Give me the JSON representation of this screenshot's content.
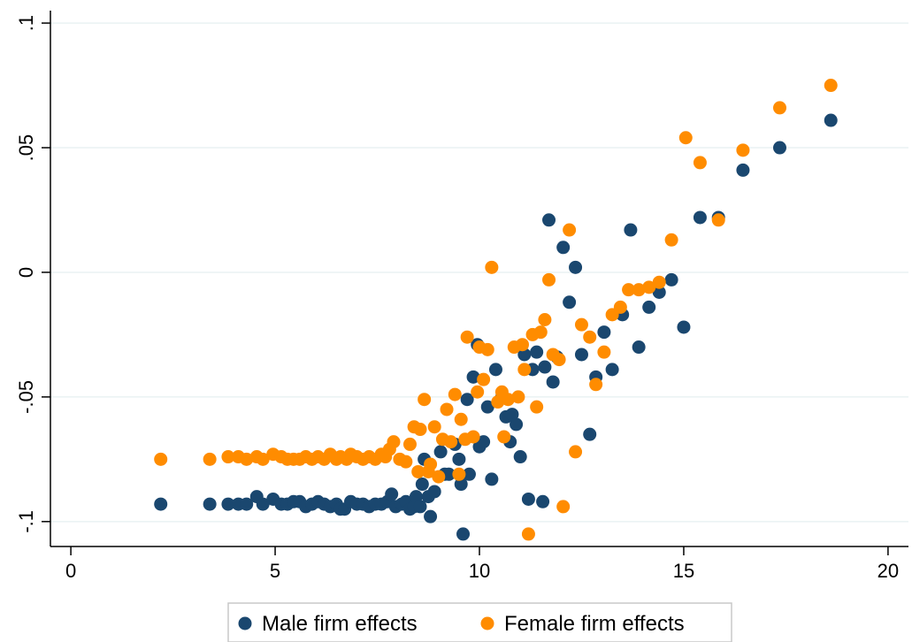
{
  "chart_data": {
    "type": "scatter",
    "title": "",
    "xlabel": "",
    "ylabel": "",
    "xlim": [
      -0.5,
      20.5
    ],
    "ylim": [
      -0.11,
      0.105
    ],
    "x_ticks": [
      0,
      5,
      10,
      15,
      20
    ],
    "x_tick_labels": [
      "0",
      "5",
      "10",
      "15",
      "20"
    ],
    "y_ticks": [
      -0.1,
      -0.05,
      0,
      0.05,
      0.1
    ],
    "y_tick_labels": [
      "-.1",
      "-.05",
      "0",
      ".05",
      ".1"
    ],
    "grid": "horizontal",
    "legend_position": "bottom",
    "series": [
      {
        "name": "Male firm effects",
        "color": "#1a476f",
        "points": [
          [
            2.2,
            -0.093
          ],
          [
            3.4,
            -0.093
          ],
          [
            3.85,
            -0.093
          ],
          [
            4.1,
            -0.093
          ],
          [
            4.3,
            -0.093
          ],
          [
            4.55,
            -0.09
          ],
          [
            4.7,
            -0.093
          ],
          [
            4.95,
            -0.091
          ],
          [
            5.15,
            -0.093
          ],
          [
            5.3,
            -0.093
          ],
          [
            5.45,
            -0.092
          ],
          [
            5.6,
            -0.092
          ],
          [
            5.75,
            -0.094
          ],
          [
            5.9,
            -0.093
          ],
          [
            6.05,
            -0.092
          ],
          [
            6.2,
            -0.093
          ],
          [
            6.35,
            -0.094
          ],
          [
            6.5,
            -0.093
          ],
          [
            6.6,
            -0.095
          ],
          [
            6.7,
            -0.095
          ],
          [
            6.85,
            -0.092
          ],
          [
            7.0,
            -0.093
          ],
          [
            7.15,
            -0.093
          ],
          [
            7.3,
            -0.094
          ],
          [
            7.45,
            -0.093
          ],
          [
            7.6,
            -0.093
          ],
          [
            7.75,
            -0.092
          ],
          [
            7.85,
            -0.089
          ],
          [
            7.95,
            -0.094
          ],
          [
            8.1,
            -0.093
          ],
          [
            8.2,
            -0.092
          ],
          [
            8.3,
            -0.095
          ],
          [
            8.4,
            -0.094
          ],
          [
            8.45,
            -0.09
          ],
          [
            8.55,
            -0.094
          ],
          [
            8.6,
            -0.085
          ],
          [
            8.65,
            -0.075
          ],
          [
            8.75,
            -0.09
          ],
          [
            8.8,
            -0.098
          ],
          [
            8.9,
            -0.088
          ],
          [
            9.05,
            -0.072
          ],
          [
            9.15,
            -0.081
          ],
          [
            9.25,
            -0.081
          ],
          [
            9.4,
            -0.069
          ],
          [
            9.5,
            -0.075
          ],
          [
            9.55,
            -0.085
          ],
          [
            9.6,
            -0.105
          ],
          [
            9.7,
            -0.051
          ],
          [
            9.75,
            -0.081
          ],
          [
            9.85,
            -0.042
          ],
          [
            9.95,
            -0.029
          ],
          [
            10.0,
            -0.07
          ],
          [
            10.1,
            -0.068
          ],
          [
            10.2,
            -0.054
          ],
          [
            10.3,
            -0.083
          ],
          [
            10.4,
            -0.039
          ],
          [
            10.55,
            -0.05
          ],
          [
            10.65,
            -0.058
          ],
          [
            10.75,
            -0.068
          ],
          [
            10.8,
            -0.057
          ],
          [
            10.9,
            -0.061
          ],
          [
            11.0,
            -0.074
          ],
          [
            11.1,
            -0.033
          ],
          [
            11.2,
            -0.091
          ],
          [
            11.3,
            -0.039
          ],
          [
            11.4,
            -0.032
          ],
          [
            11.55,
            -0.092
          ],
          [
            11.6,
            -0.038
          ],
          [
            11.7,
            0.021
          ],
          [
            11.8,
            -0.044
          ],
          [
            11.9,
            -0.034
          ],
          [
            12.05,
            0.01
          ],
          [
            12.2,
            -0.012
          ],
          [
            12.35,
            0.002
          ],
          [
            12.5,
            -0.033
          ],
          [
            12.7,
            -0.065
          ],
          [
            12.85,
            -0.042
          ],
          [
            13.05,
            -0.024
          ],
          [
            13.25,
            -0.039
          ],
          [
            13.5,
            -0.017
          ],
          [
            13.7,
            0.017
          ],
          [
            13.9,
            -0.03
          ],
          [
            14.15,
            -0.014
          ],
          [
            14.4,
            -0.008
          ],
          [
            14.7,
            -0.003
          ],
          [
            15.0,
            -0.022
          ],
          [
            15.4,
            0.022
          ],
          [
            15.85,
            0.022
          ],
          [
            16.45,
            0.041
          ],
          [
            17.35,
            0.05
          ],
          [
            18.6,
            0.061
          ]
        ]
      },
      {
        "name": "Female firm effects",
        "color": "#ff8c00",
        "points": [
          [
            2.2,
            -0.075
          ],
          [
            3.4,
            -0.075
          ],
          [
            3.85,
            -0.074
          ],
          [
            4.1,
            -0.074
          ],
          [
            4.3,
            -0.075
          ],
          [
            4.55,
            -0.074
          ],
          [
            4.7,
            -0.075
          ],
          [
            4.95,
            -0.073
          ],
          [
            5.15,
            -0.074
          ],
          [
            5.3,
            -0.075
          ],
          [
            5.45,
            -0.075
          ],
          [
            5.6,
            -0.075
          ],
          [
            5.75,
            -0.074
          ],
          [
            5.9,
            -0.075
          ],
          [
            6.05,
            -0.074
          ],
          [
            6.2,
            -0.075
          ],
          [
            6.35,
            -0.073
          ],
          [
            6.5,
            -0.075
          ],
          [
            6.6,
            -0.074
          ],
          [
            6.75,
            -0.075
          ],
          [
            6.85,
            -0.073
          ],
          [
            7.0,
            -0.074
          ],
          [
            7.15,
            -0.075
          ],
          [
            7.3,
            -0.074
          ],
          [
            7.45,
            -0.075
          ],
          [
            7.6,
            -0.073
          ],
          [
            7.7,
            -0.074
          ],
          [
            7.8,
            -0.071
          ],
          [
            7.9,
            -0.068
          ],
          [
            8.05,
            -0.075
          ],
          [
            8.2,
            -0.076
          ],
          [
            8.3,
            -0.069
          ],
          [
            8.4,
            -0.062
          ],
          [
            8.5,
            -0.08
          ],
          [
            8.55,
            -0.063
          ],
          [
            8.65,
            -0.051
          ],
          [
            8.75,
            -0.08
          ],
          [
            8.8,
            -0.077
          ],
          [
            8.9,
            -0.062
          ],
          [
            9.0,
            -0.082
          ],
          [
            9.1,
            -0.067
          ],
          [
            9.2,
            -0.055
          ],
          [
            9.3,
            -0.068
          ],
          [
            9.4,
            -0.049
          ],
          [
            9.5,
            -0.081
          ],
          [
            9.55,
            -0.059
          ],
          [
            9.65,
            -0.067
          ],
          [
            9.7,
            -0.026
          ],
          [
            9.85,
            -0.066
          ],
          [
            9.95,
            -0.048
          ],
          [
            10.0,
            -0.03
          ],
          [
            10.1,
            -0.043
          ],
          [
            10.2,
            -0.031
          ],
          [
            10.3,
            0.002
          ],
          [
            10.45,
            -0.052
          ],
          [
            10.55,
            -0.048
          ],
          [
            10.6,
            -0.066
          ],
          [
            10.7,
            -0.051
          ],
          [
            10.85,
            -0.03
          ],
          [
            10.95,
            -0.05
          ],
          [
            11.05,
            -0.029
          ],
          [
            11.1,
            -0.039
          ],
          [
            11.2,
            -0.105
          ],
          [
            11.3,
            -0.025
          ],
          [
            11.4,
            -0.054
          ],
          [
            11.5,
            -0.024
          ],
          [
            11.6,
            -0.019
          ],
          [
            11.7,
            -0.003
          ],
          [
            11.8,
            -0.033
          ],
          [
            11.95,
            -0.035
          ],
          [
            12.05,
            -0.094
          ],
          [
            12.2,
            0.017
          ],
          [
            12.35,
            -0.072
          ],
          [
            12.5,
            -0.021
          ],
          [
            12.7,
            -0.026
          ],
          [
            12.85,
            -0.045
          ],
          [
            13.05,
            -0.032
          ],
          [
            13.25,
            -0.017
          ],
          [
            13.45,
            -0.014
          ],
          [
            13.65,
            -0.007
          ],
          [
            13.9,
            -0.007
          ],
          [
            14.15,
            -0.006
          ],
          [
            14.4,
            -0.004
          ],
          [
            14.7,
            0.013
          ],
          [
            15.05,
            0.054
          ],
          [
            15.4,
            0.044
          ],
          [
            15.85,
            0.021
          ],
          [
            16.45,
            0.049
          ],
          [
            17.35,
            0.066
          ],
          [
            18.6,
            0.075
          ]
        ]
      }
    ]
  }
}
